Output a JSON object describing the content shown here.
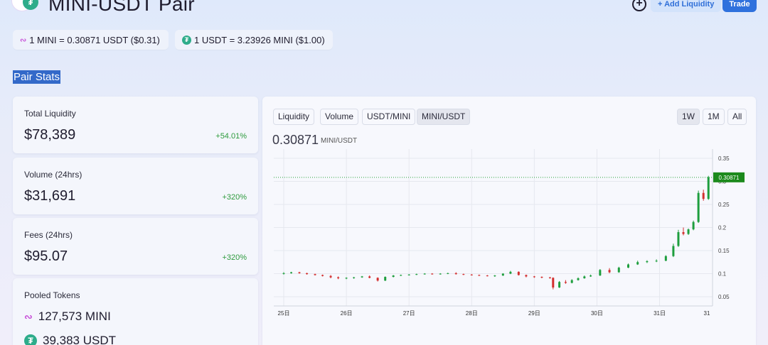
{
  "header": {
    "title": "MINI-USDT Pair",
    "add_liquidity_label": "+ Add Liquidity",
    "trade_label": "Trade",
    "plus_label": "+"
  },
  "prices": {
    "mini_to_usdt": "1 MINI = 0.30871 USDT ($0.31)",
    "usdt_to_mini": "1 USDT = 3.23926 MINI ($1.00)"
  },
  "section_title": "Pair Stats",
  "stats": {
    "total_liquidity": {
      "label": "Total Liquidity",
      "value": "$78,389",
      "change": "+54.01%"
    },
    "volume": {
      "label": "Volume (24hrs)",
      "value": "$31,691",
      "change": "+320%"
    },
    "fees": {
      "label": "Fees (24hrs)",
      "value": "$95.07",
      "change": "+320%"
    }
  },
  "pooled": {
    "label": "Pooled Tokens",
    "mini": "127,573 MINI",
    "usdt": "39,383 USDT"
  },
  "chart_tabs": [
    "Liquidity",
    "Volume",
    "USDT/MINI",
    "MINI/USDT"
  ],
  "active_tab": "MINI/USDT",
  "range_tabs": [
    "1W",
    "1M",
    "All"
  ],
  "active_range": "1W",
  "current_price": "0.30871",
  "current_price_unit": "MINI/USDT",
  "colors": {
    "up": "#1e9e3e",
    "down": "#d32f2f",
    "accent": "#2f71dd",
    "price_tag": "#1c8a1c"
  },
  "chart_data": {
    "type": "candlestick",
    "x_ticks": [
      "25日",
      "26日",
      "27日",
      "28日",
      "29日",
      "30日",
      "31日",
      "31"
    ],
    "y_ticks": [
      "0.35",
      "0.3",
      "0.25",
      "0.2",
      "0.15",
      "0.1",
      "0.05"
    ],
    "ylim": [
      0.03,
      0.37
    ],
    "current_price_label": "0.30871",
    "candles": [
      [
        0.0,
        0.1,
        0.103,
        0.098,
        0.101
      ],
      [
        0.12,
        0.101,
        0.104,
        0.1,
        0.103
      ],
      [
        0.25,
        0.103,
        0.104,
        0.1,
        0.101
      ],
      [
        0.37,
        0.101,
        0.102,
        0.098,
        0.099
      ],
      [
        0.5,
        0.099,
        0.1,
        0.096,
        0.097
      ],
      [
        0.62,
        0.097,
        0.098,
        0.094,
        0.095
      ],
      [
        0.75,
        0.095,
        0.097,
        0.09,
        0.092
      ],
      [
        0.87,
        0.092,
        0.094,
        0.088,
        0.09
      ],
      [
        1.0,
        0.09,
        0.092,
        0.088,
        0.091
      ],
      [
        1.12,
        0.091,
        0.093,
        0.089,
        0.092
      ],
      [
        1.25,
        0.092,
        0.095,
        0.091,
        0.094
      ],
      [
        1.37,
        0.094,
        0.096,
        0.09,
        0.091
      ],
      [
        1.5,
        0.091,
        0.092,
        0.083,
        0.085
      ],
      [
        1.62,
        0.085,
        0.094,
        0.084,
        0.093
      ],
      [
        1.75,
        0.093,
        0.097,
        0.092,
        0.096
      ],
      [
        1.87,
        0.096,
        0.098,
        0.095,
        0.097
      ],
      [
        2.0,
        0.097,
        0.099,
        0.096,
        0.098
      ],
      [
        2.12,
        0.098,
        0.1,
        0.097,
        0.099
      ],
      [
        2.25,
        0.099,
        0.101,
        0.098,
        0.1
      ],
      [
        2.37,
        0.1,
        0.101,
        0.098,
        0.099
      ],
      [
        2.5,
        0.099,
        0.101,
        0.098,
        0.1
      ],
      [
        2.62,
        0.1,
        0.102,
        0.099,
        0.101
      ],
      [
        2.75,
        0.101,
        0.103,
        0.098,
        0.099
      ],
      [
        2.87,
        0.099,
        0.1,
        0.097,
        0.098
      ],
      [
        3.0,
        0.098,
        0.099,
        0.096,
        0.097
      ],
      [
        3.12,
        0.097,
        0.098,
        0.095,
        0.096
      ],
      [
        3.25,
        0.096,
        0.097,
        0.094,
        0.095
      ],
      [
        3.37,
        0.095,
        0.097,
        0.093,
        0.096
      ],
      [
        3.5,
        0.096,
        0.101,
        0.095,
        0.1
      ],
      [
        3.62,
        0.1,
        0.106,
        0.099,
        0.104
      ],
      [
        3.75,
        0.104,
        0.105,
        0.096,
        0.097
      ],
      [
        3.87,
        0.097,
        0.098,
        0.092,
        0.094
      ],
      [
        4.0,
        0.094,
        0.095,
        0.091,
        0.093
      ],
      [
        4.12,
        0.093,
        0.094,
        0.09,
        0.092
      ],
      [
        4.25,
        0.092,
        0.093,
        0.089,
        0.091
      ],
      [
        4.3,
        0.091,
        0.092,
        0.066,
        0.07
      ],
      [
        4.4,
        0.07,
        0.084,
        0.069,
        0.082
      ],
      [
        4.5,
        0.082,
        0.086,
        0.078,
        0.08
      ],
      [
        4.6,
        0.08,
        0.088,
        0.079,
        0.086
      ],
      [
        4.7,
        0.086,
        0.092,
        0.085,
        0.09
      ],
      [
        4.8,
        0.09,
        0.096,
        0.089,
        0.094
      ],
      [
        4.9,
        0.094,
        0.098,
        0.093,
        0.096
      ],
      [
        5.05,
        0.096,
        0.11,
        0.095,
        0.108
      ],
      [
        5.2,
        0.108,
        0.112,
        0.101,
        0.103
      ],
      [
        5.35,
        0.103,
        0.115,
        0.102,
        0.113
      ],
      [
        5.5,
        0.113,
        0.122,
        0.112,
        0.12
      ],
      [
        5.65,
        0.12,
        0.128,
        0.119,
        0.125
      ],
      [
        5.8,
        0.125,
        0.129,
        0.123,
        0.127
      ],
      [
        5.95,
        0.127,
        0.131,
        0.125,
        0.128
      ],
      [
        6.1,
        0.128,
        0.14,
        0.127,
        0.138
      ],
      [
        6.22,
        0.138,
        0.165,
        0.136,
        0.16
      ],
      [
        6.3,
        0.16,
        0.195,
        0.158,
        0.19
      ],
      [
        6.38,
        0.19,
        0.2,
        0.183,
        0.186
      ],
      [
        6.46,
        0.186,
        0.198,
        0.184,
        0.196
      ],
      [
        6.54,
        0.196,
        0.215,
        0.194,
        0.212
      ],
      [
        6.62,
        0.212,
        0.28,
        0.21,
        0.275
      ],
      [
        6.7,
        0.275,
        0.282,
        0.258,
        0.262
      ],
      [
        6.78,
        0.262,
        0.312,
        0.26,
        0.309
      ]
    ]
  }
}
